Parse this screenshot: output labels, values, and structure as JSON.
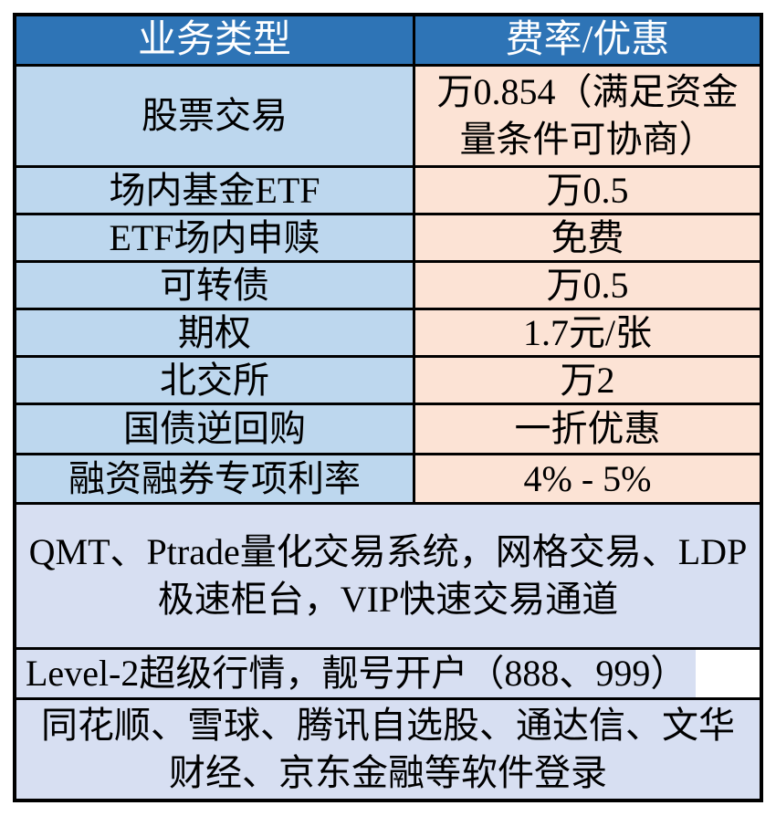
{
  "table": {
    "title_semantic": "brokerage-fee-rate-table",
    "header": {
      "business_type": "业务类型",
      "fee_discount": "费率/优惠"
    },
    "rows": [
      {
        "type": "股票交易",
        "fee": "万0.854（满足资金量条件可协商）"
      },
      {
        "type": "场内基金ETF",
        "fee": "万0.5"
      },
      {
        "type": "ETF场内申赎",
        "fee": "免费"
      },
      {
        "type": "可转债",
        "fee": "万0.5"
      },
      {
        "type": "期权",
        "fee": "1.7元/张"
      },
      {
        "type": "北交所",
        "fee": "万2"
      },
      {
        "type": "国债逆回购",
        "fee": "一折优惠"
      },
      {
        "type": "融资融券专项利率",
        "fee": "4% - 5%"
      }
    ],
    "features": [
      {
        "text": "QMT、Ptrade量化交易系统，网格交易、LDP极速柜台，VIP快速交易通道"
      },
      {
        "text": "Level-2超级行情，靓号开户（888、999）"
      },
      {
        "text": "同花顺、雪球、腾讯自选股、通达信、文华财经、京东金融等软件登录"
      }
    ],
    "colors": {
      "header_bg": "#2E74B6",
      "header_text": "#FFFFFF",
      "type_column_bg": "#BDD7EE",
      "fee_column_bg": "#FCE3D5",
      "feature_rows_bg": "#D7DFF2",
      "border": "#000000",
      "body_text": "#000000"
    }
  }
}
